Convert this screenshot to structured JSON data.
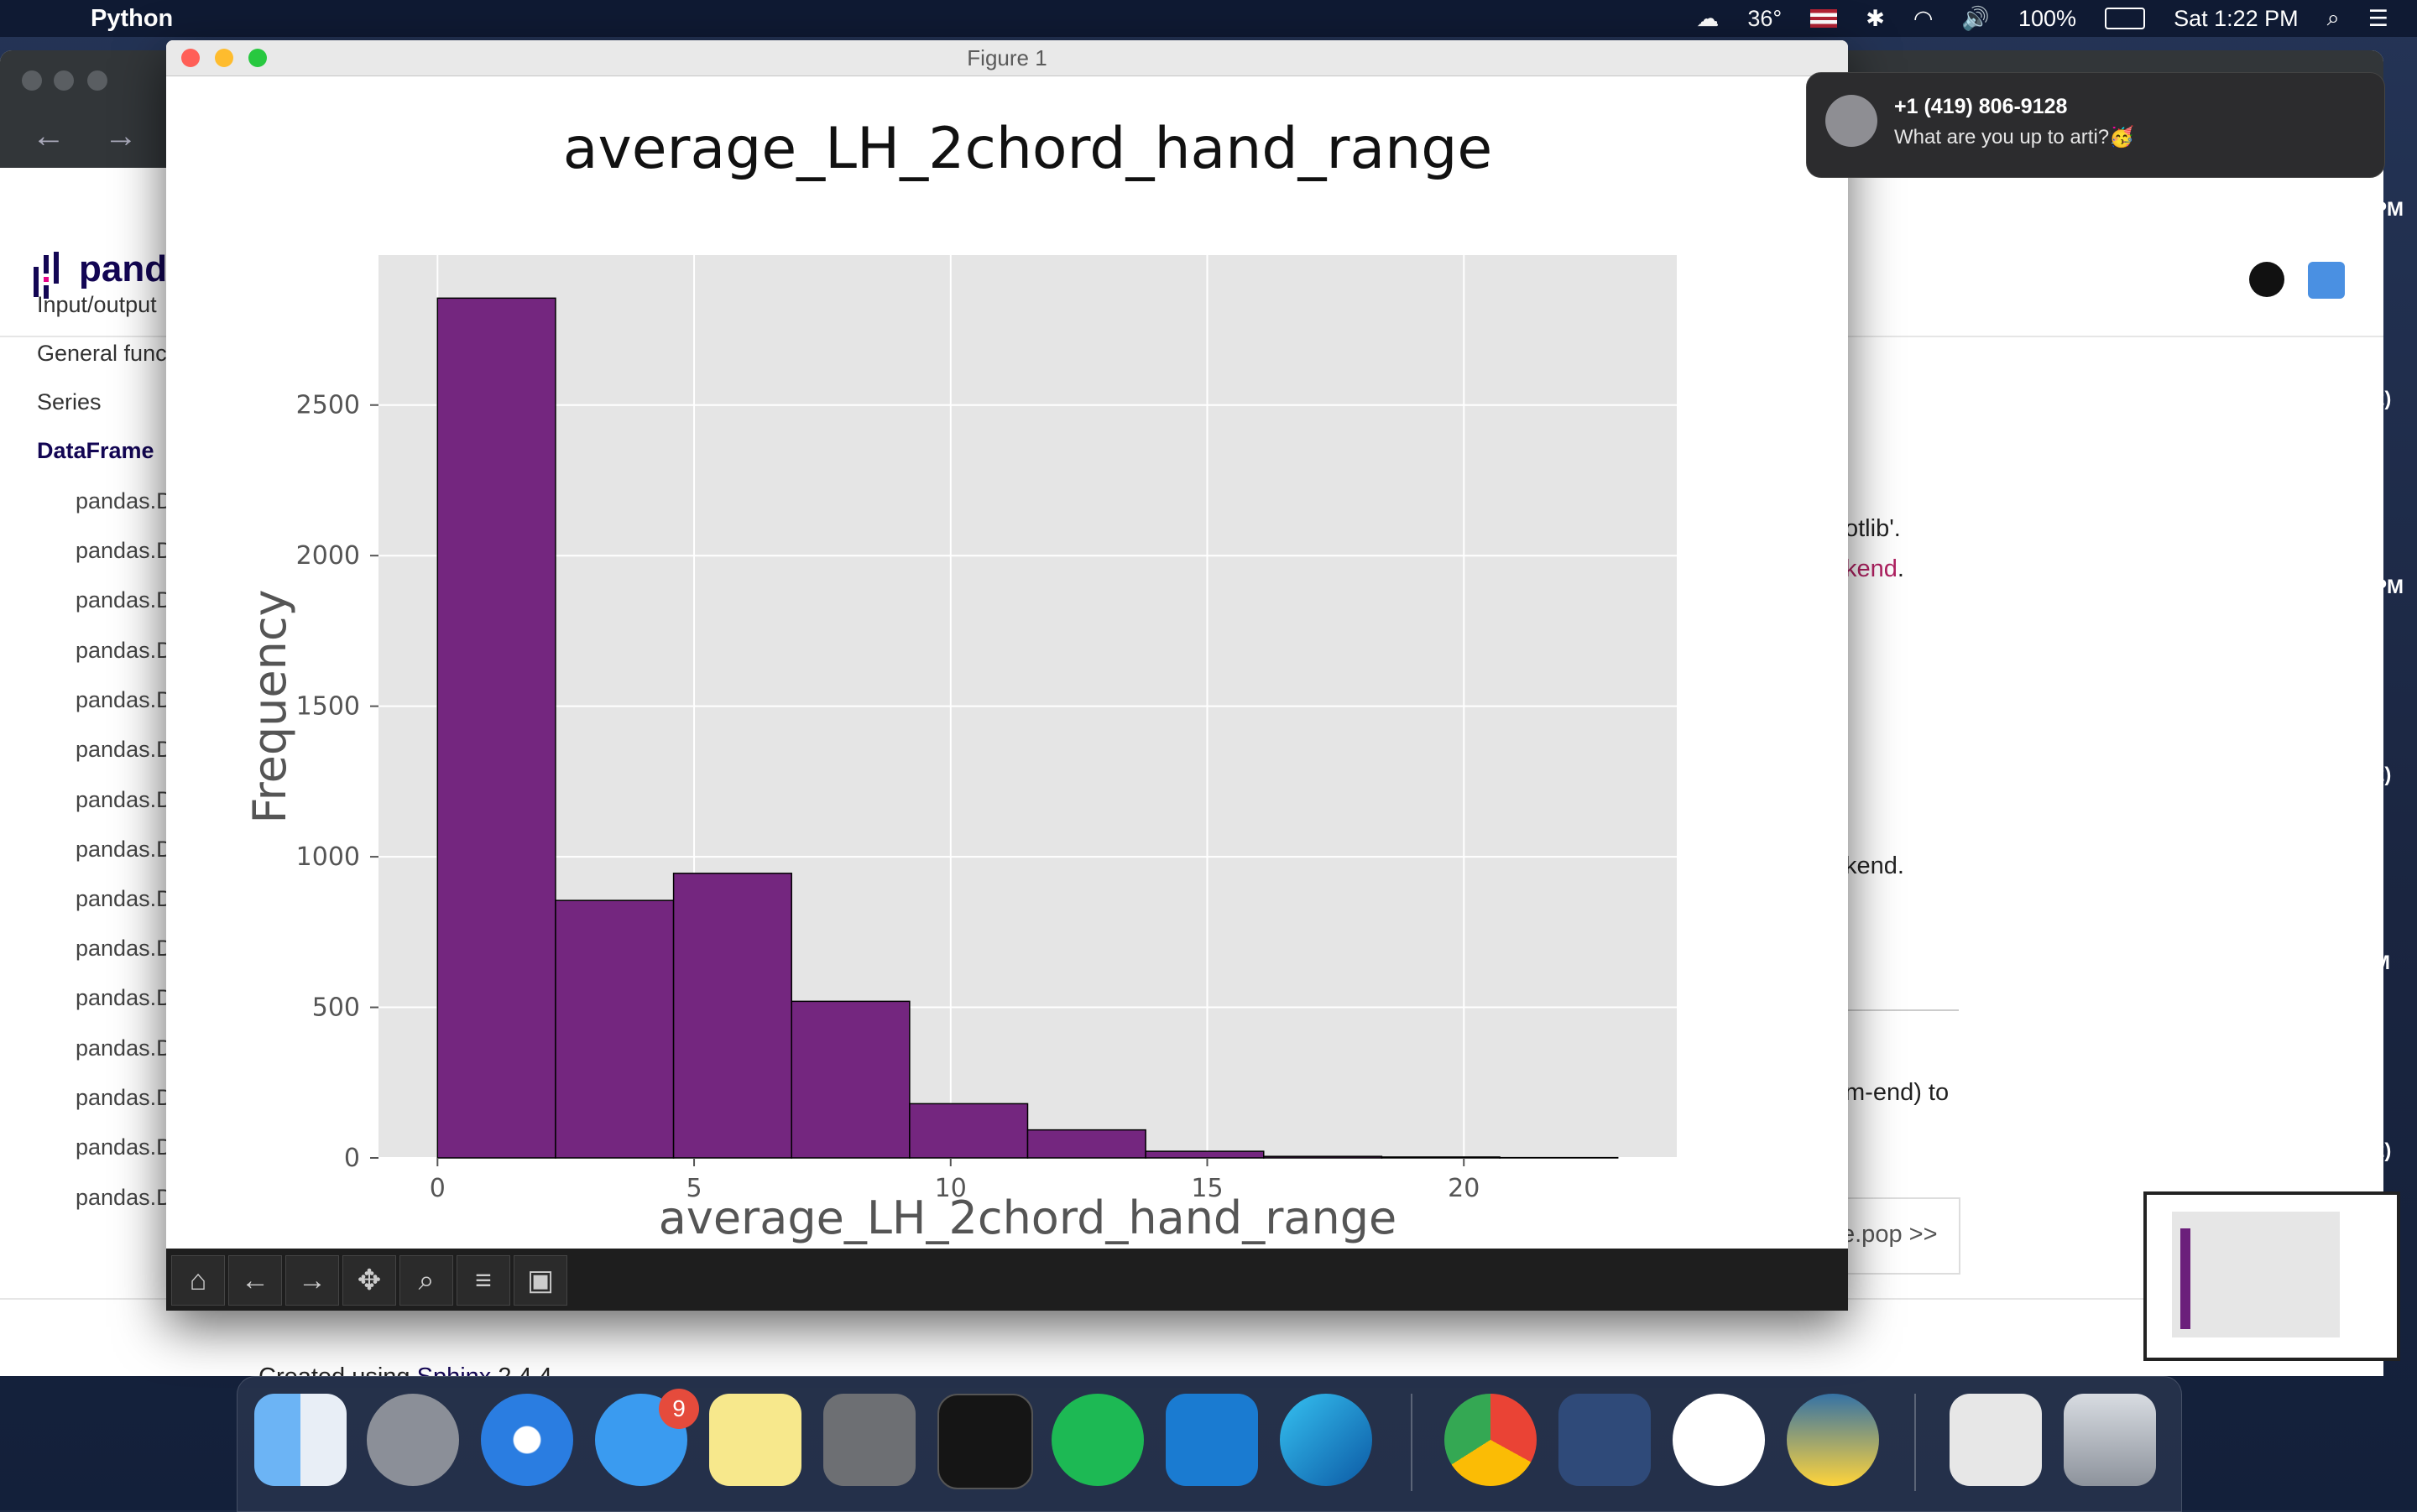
{
  "menubar": {
    "app_name": "Python",
    "temperature": "36°",
    "battery": "100%",
    "clock": "Sat 1:22 PM"
  },
  "sidebar": {
    "items": [
      {
        "label": "Input/output"
      },
      {
        "label": "General funct"
      },
      {
        "label": "Series"
      },
      {
        "label": "DataFrame"
      }
    ],
    "sub_items": [
      "pandas.D",
      "pandas.D",
      "pandas.D",
      "pandas.D",
      "pandas.D",
      "pandas.D",
      "pandas.D",
      "pandas.D",
      "pandas.D",
      "pandas.D",
      "pandas.D",
      "pandas.D",
      "pandas.D",
      "pandas.D",
      "pandas.D"
    ]
  },
  "page": {
    "brand": "pand",
    "frag_1": "otlib'.",
    "frag_2": "kend",
    "frag_2_suffix": ".",
    "frag_3": "kend.",
    "frag_4": "m-end) to",
    "next_button": "e.pop >>",
    "footer_prefix": "Created using ",
    "footer_link": "Sphinx",
    "footer_suffix": " 2.4.4.",
    "edge_times": [
      "PM",
      "2)",
      "PM",
      "2)",
      "M",
      "2)"
    ]
  },
  "figure": {
    "window_title": "Figure 1",
    "toolbar": [
      "home-icon",
      "back-icon",
      "forward-icon",
      "pan-icon",
      "zoom-icon",
      "configure-icon",
      "save-icon"
    ]
  },
  "notification": {
    "title": "+1 (419) 806-9128",
    "body": "What are you up to arti?🥳"
  },
  "dock": {
    "messages_badge": "9"
  },
  "colors": {
    "bar_fill": "#74267f",
    "plot_bg": "#e5e5e5",
    "menubar_bg": "#0f1a33"
  },
  "chart_data": {
    "type": "bar",
    "title": "average_LH_2chord_hand_range",
    "xlabel": "average_LH_2chord_hand_range",
    "ylabel": "Frequency",
    "bin_edges": [
      0,
      2.3,
      4.6,
      6.9,
      9.2,
      11.5,
      13.8,
      16.1,
      18.4,
      20.7,
      23
    ],
    "values": [
      2855,
      855,
      945,
      520,
      180,
      93,
      22,
      5,
      3,
      1
    ],
    "xlim": [
      -1.15,
      24.15
    ],
    "ylim": [
      0,
      2998
    ],
    "x_ticks": [
      0,
      5,
      10,
      15,
      20
    ],
    "y_ticks": [
      0,
      500,
      1000,
      1500,
      2000,
      2500
    ],
    "grid": true
  }
}
